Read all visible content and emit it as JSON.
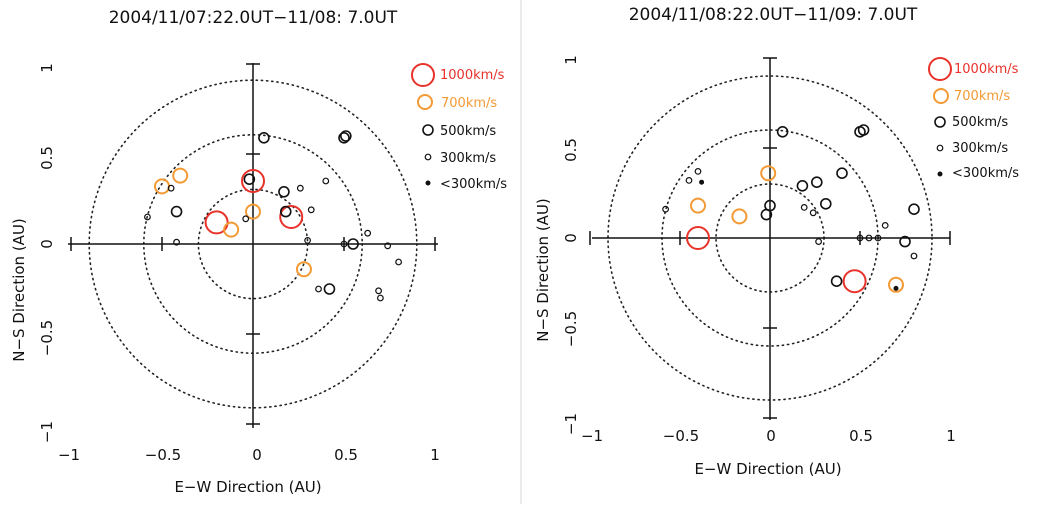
{
  "chart_data": [
    {
      "type": "scatter",
      "title": "2004/11/07:22.0UT−11/08: 7.0UT",
      "xlabel": "E−W Direction (AU)",
      "ylabel": "N−S Direction (AU)",
      "xlim": [
        -1,
        1
      ],
      "ylim": [
        -1,
        1
      ],
      "x_ticks": [
        "−1",
        "−0.5",
        "0",
        "0.5",
        "1"
      ],
      "y_ticks": [
        "−1",
        "−0.5",
        "0",
        "0.5",
        "1"
      ],
      "circles_au": [
        0.3,
        0.6,
        0.9
      ],
      "grid": false,
      "legend": "top-right",
      "legend_entries": [
        {
          "label": "1000km/s",
          "class": "1000",
          "color": "#e8322a"
        },
        {
          "label": "700km/s",
          "class": "700",
          "color": "#f39a35"
        },
        {
          "label": "500km/s",
          "class": "500",
          "color": "#111111"
        },
        {
          "label": "300km/s",
          "class": "300",
          "color": "#111111"
        },
        {
          "label": "<300km/s",
          "class": "lt300",
          "color": "#111111"
        }
      ],
      "points": [
        {
          "x": 0.0,
          "y": 0.35,
          "speed": "1000"
        },
        {
          "x": -0.2,
          "y": 0.12,
          "speed": "1000"
        },
        {
          "x": 0.21,
          "y": 0.15,
          "speed": "1000"
        },
        {
          "x": -0.4,
          "y": 0.38,
          "speed": "700"
        },
        {
          "x": -0.5,
          "y": 0.32,
          "speed": "700"
        },
        {
          "x": -0.12,
          "y": 0.08,
          "speed": "700"
        },
        {
          "x": 0.0,
          "y": 0.18,
          "speed": "700"
        },
        {
          "x": 0.28,
          "y": -0.14,
          "speed": "700"
        },
        {
          "x": 0.06,
          "y": 0.59,
          "speed": "500"
        },
        {
          "x": 0.5,
          "y": 0.59,
          "speed": "500"
        },
        {
          "x": 0.51,
          "y": 0.6,
          "speed": "500"
        },
        {
          "x": 0.17,
          "y": 0.29,
          "speed": "500"
        },
        {
          "x": 0.18,
          "y": 0.18,
          "speed": "500"
        },
        {
          "x": -0.42,
          "y": 0.18,
          "speed": "500"
        },
        {
          "x": 0.42,
          "y": -0.25,
          "speed": "500"
        },
        {
          "x": 0.55,
          "y": 0.0,
          "speed": "500"
        },
        {
          "x": -0.02,
          "y": 0.36,
          "speed": "500"
        },
        {
          "x": 0.26,
          "y": 0.31,
          "speed": "300"
        },
        {
          "x": 0.32,
          "y": 0.19,
          "speed": "300"
        },
        {
          "x": 0.4,
          "y": 0.35,
          "speed": "300"
        },
        {
          "x": -0.58,
          "y": 0.15,
          "speed": "300"
        },
        {
          "x": -0.45,
          "y": 0.31,
          "speed": "300"
        },
        {
          "x": -0.04,
          "y": 0.14,
          "speed": "300"
        },
        {
          "x": 0.36,
          "y": -0.25,
          "speed": "300"
        },
        {
          "x": 0.5,
          "y": 0.0,
          "speed": "300"
        },
        {
          "x": 0.63,
          "y": 0.06,
          "speed": "300"
        },
        {
          "x": 0.74,
          "y": -0.01,
          "speed": "300"
        },
        {
          "x": 0.8,
          "y": -0.1,
          "speed": "300"
        },
        {
          "x": 0.69,
          "y": -0.26,
          "speed": "300"
        },
        {
          "x": 0.7,
          "y": -0.3,
          "speed": "300"
        },
        {
          "x": 0.3,
          "y": 0.02,
          "speed": "300"
        },
        {
          "x": -0.42,
          "y": 0.01,
          "speed": "300"
        }
      ]
    },
    {
      "type": "scatter",
      "title": "2004/11/08:22.0UT−11/09: 7.0UT",
      "xlabel": "E−W Direction (AU)",
      "ylabel": "N−S Direction (AU)",
      "xlim": [
        -1,
        1
      ],
      "ylim": [
        -1,
        1
      ],
      "x_ticks": [
        "−1",
        "−0.5",
        "0",
        "0.5",
        "1"
      ],
      "y_ticks": [
        "−1",
        "−0.5",
        "0",
        "0.5",
        "1"
      ],
      "circles_au": [
        0.3,
        0.6,
        0.9
      ],
      "grid": false,
      "legend": "top-right",
      "legend_entries": [
        {
          "label": "1000km/s",
          "class": "1000",
          "color": "#e8322a"
        },
        {
          "label": "700km/s",
          "class": "700",
          "color": "#f39a35"
        },
        {
          "label": "500km/s",
          "class": "500",
          "color": "#111111"
        },
        {
          "label": "300km/s",
          "class": "300",
          "color": "#111111"
        },
        {
          "label": "<300km/s",
          "class": "lt300",
          "color": "#111111"
        }
      ],
      "points": [
        {
          "x": -0.4,
          "y": 0.0,
          "speed": "1000"
        },
        {
          "x": 0.47,
          "y": -0.24,
          "speed": "1000"
        },
        {
          "x": -0.4,
          "y": 0.18,
          "speed": "700"
        },
        {
          "x": -0.17,
          "y": 0.12,
          "speed": "700"
        },
        {
          "x": -0.01,
          "y": 0.36,
          "speed": "700"
        },
        {
          "x": 0.7,
          "y": -0.26,
          "speed": "700"
        },
        {
          "x": 0.07,
          "y": 0.59,
          "speed": "500"
        },
        {
          "x": 0.5,
          "y": 0.59,
          "speed": "500"
        },
        {
          "x": 0.52,
          "y": 0.6,
          "speed": "500"
        },
        {
          "x": 0.18,
          "y": 0.29,
          "speed": "500"
        },
        {
          "x": 0.26,
          "y": 0.31,
          "speed": "500"
        },
        {
          "x": 0.31,
          "y": 0.19,
          "speed": "500"
        },
        {
          "x": 0.4,
          "y": 0.36,
          "speed": "500"
        },
        {
          "x": 0.0,
          "y": 0.18,
          "speed": "500"
        },
        {
          "x": -0.02,
          "y": 0.13,
          "speed": "500"
        },
        {
          "x": 0.37,
          "y": -0.24,
          "speed": "500"
        },
        {
          "x": 0.75,
          "y": -0.02,
          "speed": "500"
        },
        {
          "x": 0.8,
          "y": 0.16,
          "speed": "500"
        },
        {
          "x": -0.4,
          "y": 0.37,
          "speed": "300"
        },
        {
          "x": -0.45,
          "y": 0.32,
          "speed": "300"
        },
        {
          "x": -0.58,
          "y": 0.16,
          "speed": "300"
        },
        {
          "x": 0.19,
          "y": 0.17,
          "speed": "300"
        },
        {
          "x": 0.24,
          "y": 0.14,
          "speed": "300"
        },
        {
          "x": 0.27,
          "y": -0.02,
          "speed": "300"
        },
        {
          "x": 0.5,
          "y": 0.0,
          "speed": "300"
        },
        {
          "x": 0.55,
          "y": 0.0,
          "speed": "300"
        },
        {
          "x": 0.64,
          "y": 0.07,
          "speed": "300"
        },
        {
          "x": 0.6,
          "y": 0.0,
          "speed": "300"
        },
        {
          "x": 0.8,
          "y": -0.1,
          "speed": "300"
        },
        {
          "x": -0.38,
          "y": 0.31,
          "speed": "lt300"
        },
        {
          "x": 0.7,
          "y": -0.28,
          "speed": "lt300"
        }
      ]
    }
  ]
}
